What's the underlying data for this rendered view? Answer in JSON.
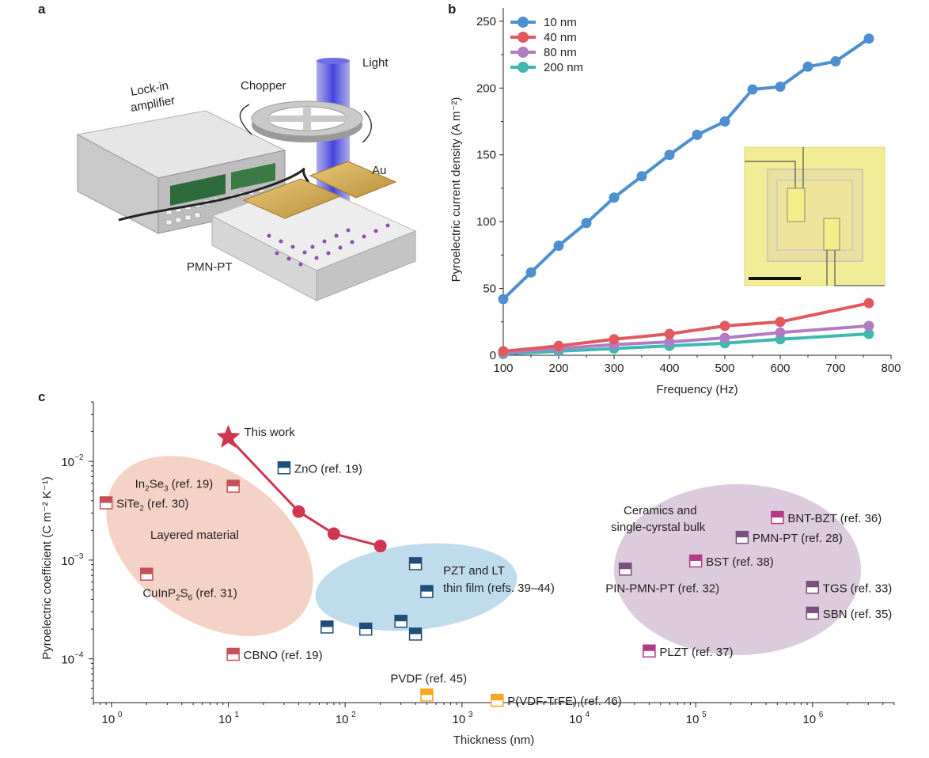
{
  "panels": {
    "a": "a",
    "b": "b",
    "c": "c"
  },
  "schematic": {
    "light": "Light",
    "chopper": "Chopper",
    "lockin_line1": "Lock-in",
    "lockin_line2": "amplifier",
    "au": "Au",
    "pmnpt": "PMN-PT"
  },
  "colors": {
    "s10": "#4d8fd1",
    "s40": "#e05a5d",
    "s80": "#b27cc4",
    "s200": "#3fb9b0",
    "text": "#231f20",
    "layered": "#f4d3c6",
    "thinfilm": "#bfdcec",
    "bulk": "#dccbdc",
    "thiswork": "#cf3650",
    "navy": "#1f4e79",
    "salmon": "#c64f58",
    "magenta": "#b23a86",
    "purple": "#7a4f7e",
    "orange": "#f5a623"
  },
  "chart_data": [
    {
      "type": "line",
      "title": "",
      "xlabel": "Frequency (Hz)",
      "ylabel": "Pyroelectric current density (A m⁻²)",
      "xlim": [
        100,
        800
      ],
      "ylim": [
        0,
        260
      ],
      "xticks": [
        100,
        200,
        300,
        400,
        500,
        600,
        700,
        800
      ],
      "yticks": [
        0,
        50,
        100,
        150,
        200,
        250
      ],
      "legend_position": "top-left",
      "series": [
        {
          "name": "10 nm",
          "color_key": "s10",
          "x": [
            100,
            150,
            200,
            250,
            300,
            350,
            400,
            450,
            500,
            550,
            600,
            650,
            700,
            760
          ],
          "y": [
            42,
            62,
            82,
            99,
            118,
            134,
            150,
            165,
            175,
            199,
            201,
            216,
            220,
            237
          ]
        },
        {
          "name": "40 nm",
          "color_key": "s40",
          "x": [
            100,
            200,
            300,
            400,
            500,
            600,
            760
          ],
          "y": [
            3,
            7,
            12,
            16,
            22,
            25,
            39
          ]
        },
        {
          "name": "80 nm",
          "color_key": "s80",
          "x": [
            100,
            200,
            300,
            400,
            500,
            600,
            760
          ],
          "y": [
            2,
            5,
            8,
            10,
            13,
            17,
            22
          ]
        },
        {
          "name": "200 nm",
          "color_key": "s200",
          "x": [
            100,
            200,
            300,
            400,
            500,
            600,
            760
          ],
          "y": [
            1,
            3,
            5,
            7,
            9,
            12,
            16
          ]
        }
      ]
    },
    {
      "type": "scatter",
      "title": "",
      "xlabel": "Thickness (nm)",
      "ylabel": "Pyroelectric coefficient (C m⁻² K⁻¹)",
      "xscale": "log",
      "yscale": "log",
      "xlim": [
        0.7,
        5000000
      ],
      "ylim": [
        3.6e-05,
        0.04
      ],
      "xtick_labels": [
        {
          "base": "10",
          "exp": "0",
          "value": 1
        },
        {
          "base": "10",
          "exp": "1",
          "value": 10
        },
        {
          "base": "10",
          "exp": "2",
          "value": 100
        },
        {
          "base": "10",
          "exp": "3",
          "value": 1000
        },
        {
          "base": "10",
          "exp": "4",
          "value": 10000
        },
        {
          "base": "10",
          "exp": "5",
          "value": 100000
        },
        {
          "base": "10",
          "exp": "6",
          "value": 1000000
        }
      ],
      "ytick_labels": [
        {
          "base": "10",
          "exp": "−4",
          "value": 0.0001
        },
        {
          "base": "10",
          "exp": "−3",
          "value": 0.001
        },
        {
          "base": "10",
          "exp": "−2",
          "value": 0.01
        }
      ],
      "this_work": {
        "label": "This work",
        "x": [
          10,
          40,
          80,
          200
        ],
        "y": [
          0.0175,
          0.0031,
          0.00185,
          0.00139
        ]
      },
      "regions": [
        {
          "label": "Layered material",
          "color_key": "layered"
        },
        {
          "label_line1": "PZT and LT",
          "label_line2": "thin film (refs. 39–44)",
          "color_key": "thinfilm"
        },
        {
          "label_line1": "Ceramics and",
          "label_line2": "single-cyrstal bulk",
          "color_key": "bulk"
        }
      ],
      "points": [
        {
          "label": "ZnO (ref. 19)",
          "x": 30,
          "y": 0.0086,
          "color_key": "navy"
        },
        {
          "label_main": "In",
          "sub1": "2",
          "label_mid": "Se",
          "sub2": "3",
          "label_end": " (ref. 19)",
          "x": 11,
          "y": 0.0056,
          "color_key": "salmon"
        },
        {
          "label_main": "SiTe",
          "sub1": "2",
          "label_end": " (ref. 30)",
          "x": 0.9,
          "y": 0.0038,
          "color_key": "salmon"
        },
        {
          "label_main": "CuInP",
          "sub1": "2",
          "label_mid": "S",
          "sub2": "6",
          "label_end": " (ref. 31)",
          "x": 2,
          "y": 0.00072,
          "color_key": "salmon"
        },
        {
          "label": "CBNO (ref. 19)",
          "x": 11,
          "y": 0.000111,
          "color_key": "salmon"
        },
        {
          "label": "",
          "x": 400,
          "y": 0.00092,
          "color_key": "navy"
        },
        {
          "label": "",
          "x": 500,
          "y": 0.00048,
          "color_key": "navy"
        },
        {
          "label": "",
          "x": 70,
          "y": 0.00021,
          "color_key": "navy"
        },
        {
          "label": "",
          "x": 150,
          "y": 0.0002,
          "color_key": "navy"
        },
        {
          "label": "",
          "x": 300,
          "y": 0.00024,
          "color_key": "navy"
        },
        {
          "label": "",
          "x": 400,
          "y": 0.000178,
          "color_key": "navy"
        },
        {
          "label": "PVDF (ref. 45)",
          "x": 500,
          "y": 4.3e-05,
          "color_key": "orange"
        },
        {
          "label": "P(VDF-TrFE) (ref. 46)",
          "x": 2000,
          "y": 3.8e-05,
          "color_key": "orange"
        },
        {
          "label": "BNT-BZT (ref. 36)",
          "x": 500000,
          "y": 0.0027,
          "color_key": "magenta"
        },
        {
          "label": "PMN-PT (ref. 28)",
          "x": 250000,
          "y": 0.0017,
          "color_key": "purple"
        },
        {
          "label": "BST (ref. 38)",
          "x": 100000,
          "y": 0.00098,
          "color_key": "magenta"
        },
        {
          "label": "PIN-PMN-PT (ref. 32)",
          "x": 25000,
          "y": 0.00081,
          "color_key": "purple"
        },
        {
          "label": "TGS (ref. 33)",
          "x": 1000000,
          "y": 0.00053,
          "color_key": "purple"
        },
        {
          "label": "SBN (ref. 35)",
          "x": 1000000,
          "y": 0.00029,
          "color_key": "purple"
        },
        {
          "label": "PLZT (ref. 37)",
          "x": 40000,
          "y": 0.00012,
          "color_key": "magenta"
        }
      ]
    }
  ]
}
